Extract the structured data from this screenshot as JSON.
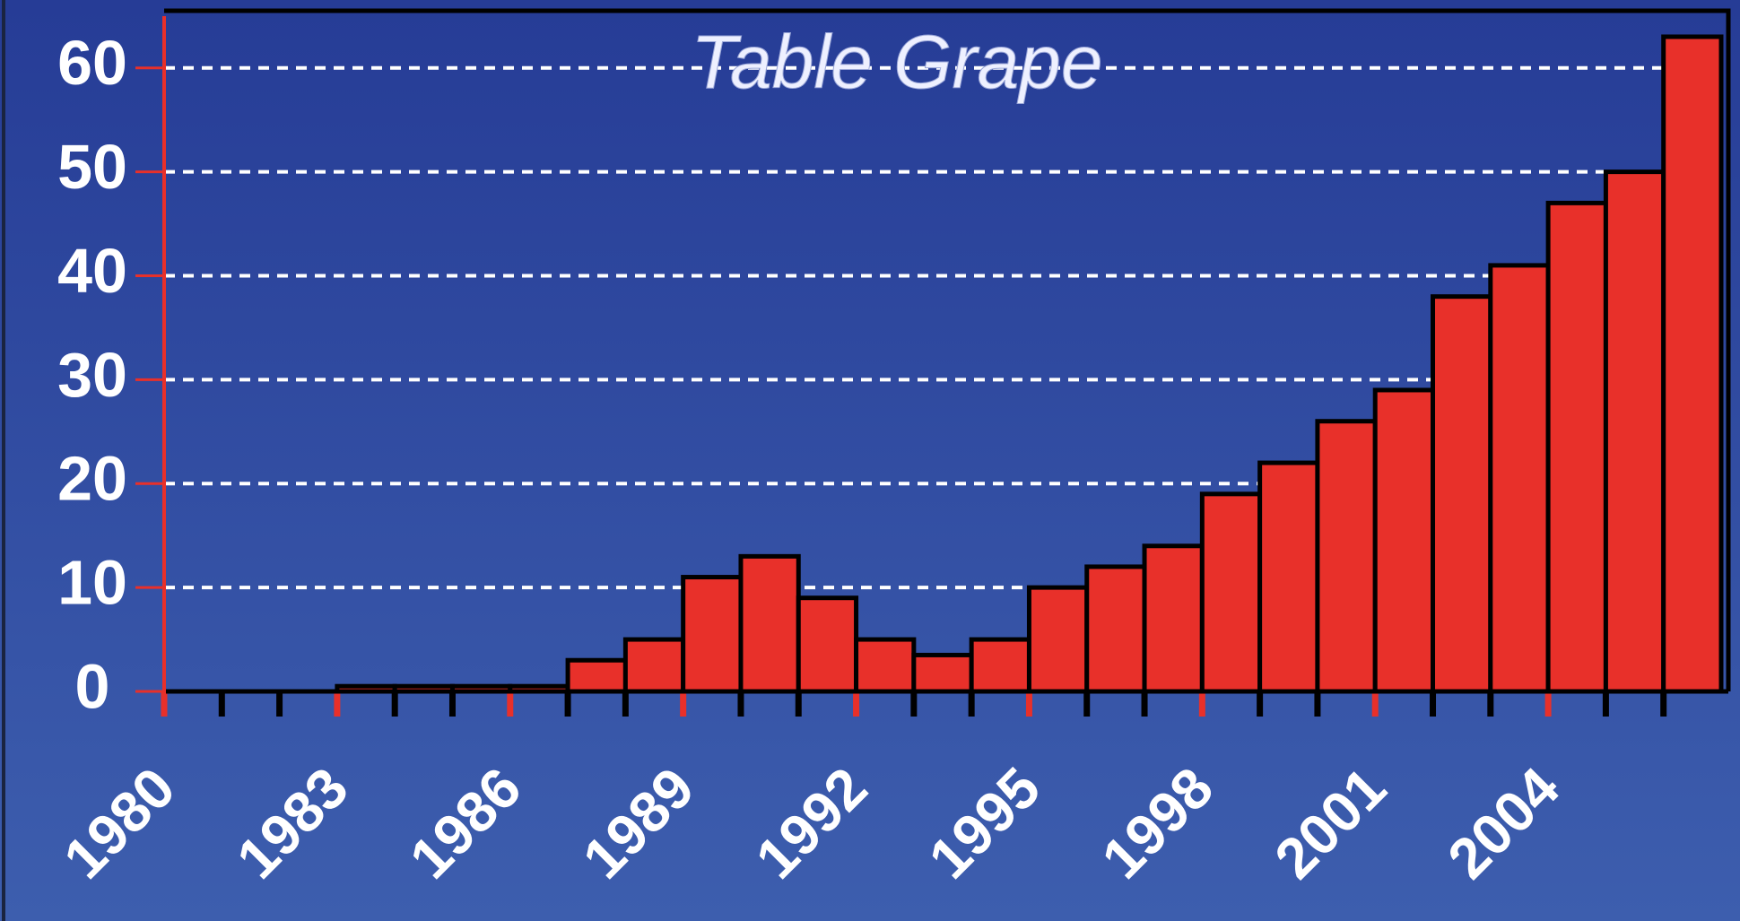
{
  "chart_data": {
    "type": "bar",
    "title": "Table Grape",
    "categories": [
      "1980",
      null,
      null,
      "1983",
      null,
      null,
      "1986",
      null,
      null,
      "1989",
      null,
      null,
      "1992",
      null,
      null,
      "1995",
      null,
      null,
      "1998",
      null,
      null,
      "2001",
      null,
      null,
      "2004",
      null,
      null
    ],
    "values": [
      0,
      0,
      0,
      0.5,
      0.5,
      0.5,
      0.5,
      3,
      5,
      11,
      13,
      9,
      5,
      3.5,
      5,
      10,
      12,
      14,
      19,
      22,
      26,
      29,
      38,
      41,
      47,
      50,
      63
    ],
    "color": "#e8302a",
    "ylim": [
      0,
      65.5
    ],
    "yticks": [
      0,
      10,
      20,
      30,
      40,
      50,
      60
    ],
    "grid": true
  }
}
